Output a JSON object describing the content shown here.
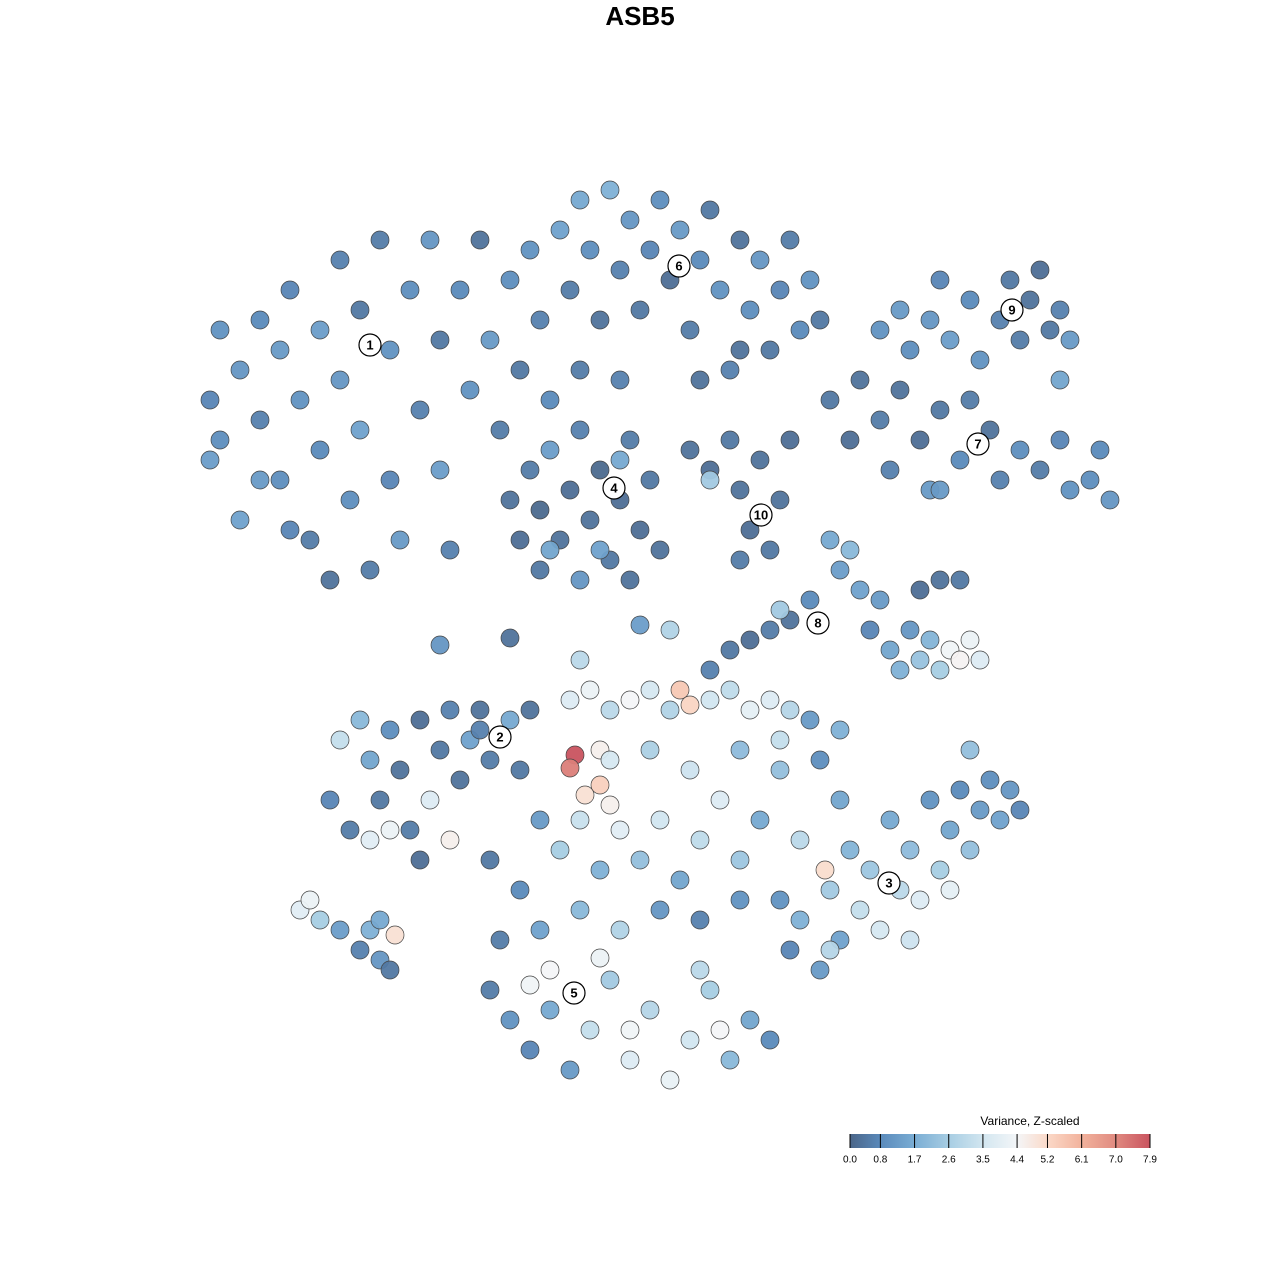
{
  "chart_data": {
    "type": "scatter",
    "title": "ASB5",
    "xlim": [
      -50,
      50
    ],
    "ylim": [
      -50,
      50
    ],
    "x": [
      -42,
      -43,
      -42,
      -40,
      -38,
      -38,
      -36,
      -36,
      -35,
      -34,
      -33,
      -32,
      -32,
      -31,
      -30,
      -30,
      -29,
      -28,
      -28,
      -27,
      -26,
      -25,
      -25,
      -24,
      -23,
      -22,
      -21,
      -20,
      -20,
      -19,
      -18,
      -17,
      -16,
      -15,
      -14,
      -13,
      -12,
      -11,
      -10,
      -9,
      -43,
      -38,
      -35,
      -40,
      -8,
      -7,
      -6,
      -5,
      -4,
      -3,
      -2,
      -1,
      0,
      1,
      2,
      3,
      4,
      5,
      6,
      7,
      8,
      9,
      10,
      11,
      12,
      13,
      14,
      15,
      16,
      17,
      18,
      -6,
      -2,
      6,
      10,
      -13,
      -12,
      -11,
      -10,
      -10,
      -9,
      -8,
      -7,
      -6,
      -6,
      -5,
      -4,
      -3,
      -2,
      -1,
      -1,
      0,
      1,
      2,
      -9,
      -2,
      -4,
      5,
      7,
      9,
      10,
      11,
      12,
      13,
      14,
      15,
      10,
      7,
      19,
      21,
      22,
      24,
      25,
      26,
      28,
      29,
      30,
      32,
      33,
      35,
      36,
      38,
      40,
      42,
      43,
      45,
      47,
      46,
      30,
      24,
      26,
      27,
      29,
      30,
      31,
      33,
      34,
      36,
      37,
      38,
      39,
      40,
      41,
      42,
      43,
      42,
      19,
      20,
      21,
      22,
      23,
      24,
      25,
      26,
      27,
      28,
      29,
      30,
      31,
      32,
      33,
      34,
      28,
      30,
      32,
      15,
      13,
      11,
      9,
      7,
      14,
      17,
      -20,
      -13,
      3,
      -6,
      0,
      -30,
      -28,
      -27,
      -26,
      -25,
      -24,
      -23,
      -22,
      -21,
      -20,
      -19,
      -18,
      -17,
      -16,
      -15,
      -13,
      -12,
      -11,
      -31,
      -29,
      -27,
      -25,
      -22,
      -19,
      -16,
      -34,
      -33,
      -32,
      -30,
      -28,
      -27,
      -26,
      -25,
      -24.5,
      -26,
      -7,
      -5,
      -3,
      -1,
      1,
      3,
      4,
      5,
      7,
      9,
      11,
      13,
      15,
      17,
      -6.5,
      -7,
      -4,
      -4,
      -5.5,
      -3,
      -10,
      -8,
      -6,
      -4,
      -2,
      0,
      2,
      4,
      6,
      8,
      10,
      12,
      14,
      16,
      18.5,
      20,
      -12,
      -14,
      -10,
      -6,
      -2,
      2,
      6,
      10,
      -15,
      -3,
      1,
      5,
      10,
      14,
      18,
      20,
      -15,
      -13,
      -11,
      -9,
      -7,
      -5,
      -3,
      -1,
      1,
      3,
      5,
      7,
      9,
      11,
      13,
      -4,
      -9,
      -11,
      6,
      8,
      -1,
      14,
      15,
      16,
      18,
      19,
      20,
      21,
      22,
      23,
      24,
      25,
      26,
      27,
      28,
      29,
      30,
      31,
      32,
      33,
      34,
      35,
      36,
      37,
      38,
      33,
      27,
      31,
      19
    ],
    "y": [
      29,
      22,
      18,
      25,
      30,
      20,
      27,
      14,
      33,
      22,
      8,
      29,
      17,
      4,
      36,
      24,
      12,
      31,
      19,
      5,
      38,
      27,
      14,
      8,
      33,
      21,
      38,
      28,
      15,
      7,
      33,
      23,
      38,
      28,
      19,
      34,
      25,
      37,
      30,
      22,
      16,
      14,
      9,
      10,
      39,
      33,
      42,
      37,
      30,
      43,
      35,
      40,
      31,
      37,
      42,
      34,
      39,
      29,
      36,
      41,
      33,
      25,
      38,
      31,
      36,
      27,
      33,
      38,
      29,
      34,
      30,
      25,
      24,
      24,
      27,
      12,
      8,
      15,
      5,
      11,
      17,
      8,
      13,
      19,
      4,
      10,
      15,
      6,
      12,
      18,
      4,
      9,
      14,
      7,
      7,
      16,
      7,
      17,
      15,
      18,
      13,
      9,
      16,
      7,
      12,
      18,
      6,
      14,
      22,
      18,
      24,
      20,
      15,
      23,
      18,
      13,
      21,
      16,
      22,
      19,
      14,
      17,
      15,
      18,
      13,
      14,
      12,
      17,
      13,
      29,
      31,
      27,
      30,
      34,
      28,
      32,
      26,
      30,
      34,
      28,
      32,
      35,
      29,
      31,
      28,
      24,
      8,
      5,
      7,
      3,
      -1,
      2,
      -3,
      -5,
      -1,
      -4,
      -2,
      -5,
      -3,
      -4,
      -2,
      -4,
      3,
      4,
      4,
      0,
      -1,
      -2,
      -3,
      -5,
      1,
      2,
      -2.5,
      -1.8,
      -1,
      -4,
      -0.5,
      -12,
      -10,
      -14,
      -18,
      -11,
      -15,
      -21,
      -10,
      -18,
      -13,
      -9,
      -16,
      -12,
      -9,
      -14,
      -10,
      -15,
      -9,
      -18,
      -21,
      -22,
      -21,
      -24,
      -22,
      -11,
      -29,
      -28,
      -30,
      -31,
      -33,
      -31,
      -34,
      -35,
      -31.5,
      -30,
      -8,
      -7,
      -9,
      -8,
      -7,
      -9,
      -7,
      -8.5,
      -8,
      -7,
      -9,
      -8,
      -9,
      -10,
      -13.5,
      -14.8,
      -13,
      -16.5,
      -17.5,
      -18.5,
      -20,
      -23,
      -20,
      -25,
      -21,
      -24,
      -20,
      -26,
      -22,
      -18,
      -24,
      -20,
      -15,
      -22,
      -25,
      -18,
      -27,
      -32,
      -31,
      -29,
      -31,
      -29,
      -30,
      -28,
      -24,
      -14,
      -13,
      -15,
      -13,
      -12,
      -14,
      -11,
      -37,
      -40,
      -43,
      -39,
      -45,
      -41,
      -36,
      -44,
      -39,
      -46,
      -42,
      -37,
      -44,
      -40,
      -42,
      -33.8,
      -35,
      -36.5,
      -35,
      -41,
      -41,
      -28,
      -33,
      -30,
      -35,
      -27,
      -32,
      -23,
      -29,
      -25,
      -31,
      -20,
      -27,
      -23,
      -28,
      -18,
      -25,
      -21,
      -17,
      -23,
      -19,
      -16,
      -20,
      -17,
      -19,
      -13,
      -32,
      -27,
      -33
    ],
    "values": [
      1.0,
      0.7,
      0.9,
      1.1,
      0.8,
      0.6,
      1.2,
      0.9,
      0.7,
      1.0,
      0.5,
      1.3,
      0.8,
      0.3,
      0.6,
      1.1,
      0.9,
      0.4,
      1.4,
      0.5,
      0.5,
      1.0,
      0.7,
      1.2,
      0.9,
      0.6,
      1.1,
      0.4,
      1.3,
      0.6,
      0.8,
      1.0,
      0.3,
      1.2,
      0.5,
      0.9,
      0.4,
      1.0,
      0.6,
      0.8,
      1.3,
      1.2,
      0.7,
      1.4,
      1.4,
      0.5,
      1.6,
      0.9,
      0.3,
      1.8,
      0.6,
      1.1,
      0.4,
      0.7,
      0.9,
      0.2,
      1.2,
      0.5,
      0.8,
      0.4,
      1.0,
      0.6,
      0.3,
      0.9,
      1.1,
      0.4,
      0.7,
      0.5,
      0.8,
      1.0,
      0.4,
      0.5,
      0.6,
      0.3,
      0.3,
      0.3,
      0.2,
      0.5,
      0.4,
      0.1,
      1.3,
      0.3,
      0.2,
      0.6,
      1.1,
      0.3,
      0.1,
      0.4,
      0.2,
      0.5,
      0.3,
      0.2,
      0.4,
      0.3,
      1.5,
      1.6,
      1.4,
      0.3,
      0.2,
      0.4,
      0.3,
      0.2,
      0.3,
      0.4,
      0.3,
      0.2,
      0.5,
      2.5,
      0.4,
      0.2,
      0.3,
      0.5,
      0.6,
      0.3,
      0.2,
      1.2,
      0.4,
      0.8,
      0.5,
      0.3,
      0.6,
      0.9,
      0.5,
      0.7,
      1.0,
      0.9,
      1.1,
      0.8,
      1.2,
      1.0,
      1.2,
      0.9,
      1.1,
      0.7,
      1.3,
      0.8,
      1.0,
      0.6,
      0.4,
      0.5,
      0.3,
      0.2,
      0.4,
      0.6,
      1.2,
      1.5,
      1.6,
      1.3,
      2.0,
      1.4,
      0.7,
      1.2,
      1.5,
      1.8,
      1.1,
      2.3,
      1.9,
      2.6,
      4.3,
      4.5,
      4.2,
      3.8,
      0.2,
      0.3,
      0.4,
      0.3,
      0.5,
      0.2,
      0.4,
      0.6,
      2.5,
      0.8,
      1.1,
      0.3,
      2.8,
      3.0,
      1.3,
      3.2,
      2.0,
      1.5,
      0.4,
      0.9,
      0.3,
      0.5,
      0.2,
      3.8,
      0.4,
      0.6,
      0.3,
      1.4,
      0.3,
      0.5,
      1.6,
      0.4,
      0.3,
      0.7,
      0.5,
      3.9,
      4.2,
      0.2,
      4.6,
      0.6,
      3.9,
      4.2,
      2.6,
      1.3,
      0.6,
      1.8,
      1.1,
      0.4,
      5.0,
      1.6,
      3.8,
      4.2,
      3.0,
      4.4,
      3.6,
      2.8,
      5.6,
      5.3,
      3.5,
      3.1,
      4.0,
      3.8,
      2.9,
      1.2,
      7.9,
      7.2,
      4.6,
      5.4,
      5.0,
      4.6,
      1.2,
      2.6,
      3.3,
      1.8,
      3.9,
      2.2,
      3.5,
      1.5,
      3.1,
      3.8,
      2.4,
      1.6,
      2.2,
      3.0,
      5.1,
      1.5,
      0.8,
      0.5,
      1.4,
      2.0,
      2.8,
      1.1,
      0.6,
      1.0,
      0.4,
      3.6,
      2.7,
      3.4,
      2.1,
      3.2,
      0.9,
      1.8,
      0.5,
      1.0,
      0.7,
      1.6,
      1.2,
      3.2,
      2.5,
      3.8,
      2.9,
      4.1,
      3.5,
      2.6,
      2.0,
      1.5,
      0.8,
      4.2,
      4.4,
      4.3,
      3.0,
      4.4,
      4.3,
      1.0,
      0.7,
      1.8,
      1.2,
      2.5,
      1.4,
      1.9,
      3.2,
      2.4,
      3.6,
      1.6,
      3.0,
      2.1,
      3.8,
      1.0,
      2.6,
      1.5,
      0.8,
      2.2,
      1.2,
      0.9,
      1.4,
      1.1,
      0.7,
      2.2,
      3.4,
      4.0,
      2.9
    ],
    "cluster_labels": [
      {
        "text": "1",
        "x": -27,
        "y": 27.5
      },
      {
        "text": "2",
        "x": -14,
        "y": -11.7
      },
      {
        "text": "3",
        "x": 24.9,
        "y": -26.3
      },
      {
        "text": "4",
        "x": -2.6,
        "y": 13.2
      },
      {
        "text": "5",
        "x": -6.6,
        "y": -37.3
      },
      {
        "text": "6",
        "x": 3.9,
        "y": 35.4
      },
      {
        "text": "7",
        "x": 33.8,
        "y": 17.6
      },
      {
        "text": "8",
        "x": 17.8,
        "y": -0.3
      },
      {
        "text": "9",
        "x": 37.2,
        "y": 31
      },
      {
        "text": "10",
        "x": 12.1,
        "y": 10.5
      }
    ],
    "colorbar_title": "Variance, Z-scaled",
    "colorbar_lim": [
      0,
      7.9
    ],
    "colorbar_ticks": [
      {
        "value": 0,
        "label": "0.0"
      },
      {
        "value": 0.8,
        "label": "0.8"
      },
      {
        "value": 1.7,
        "label": "1.7"
      },
      {
        "value": 2.6,
        "label": "2.6"
      },
      {
        "value": 3.5,
        "label": "3.5"
      },
      {
        "value": 4.4,
        "label": "4.4"
      },
      {
        "value": 5.2,
        "label": "5.2"
      },
      {
        "value": 6.1,
        "label": "6.1"
      },
      {
        "value": 7.0,
        "label": "7.0"
      },
      {
        "value": 7.9,
        "label": "7.9"
      }
    ],
    "colorscale": [
      "#4a6588",
      "#5a8abb",
      "#7aadd4",
      "#a7cde3",
      "#d2e6f0",
      "#f4f6f8",
      "#fbd9c8",
      "#f2b29c",
      "#e08a80",
      "#c9535f"
    ]
  }
}
